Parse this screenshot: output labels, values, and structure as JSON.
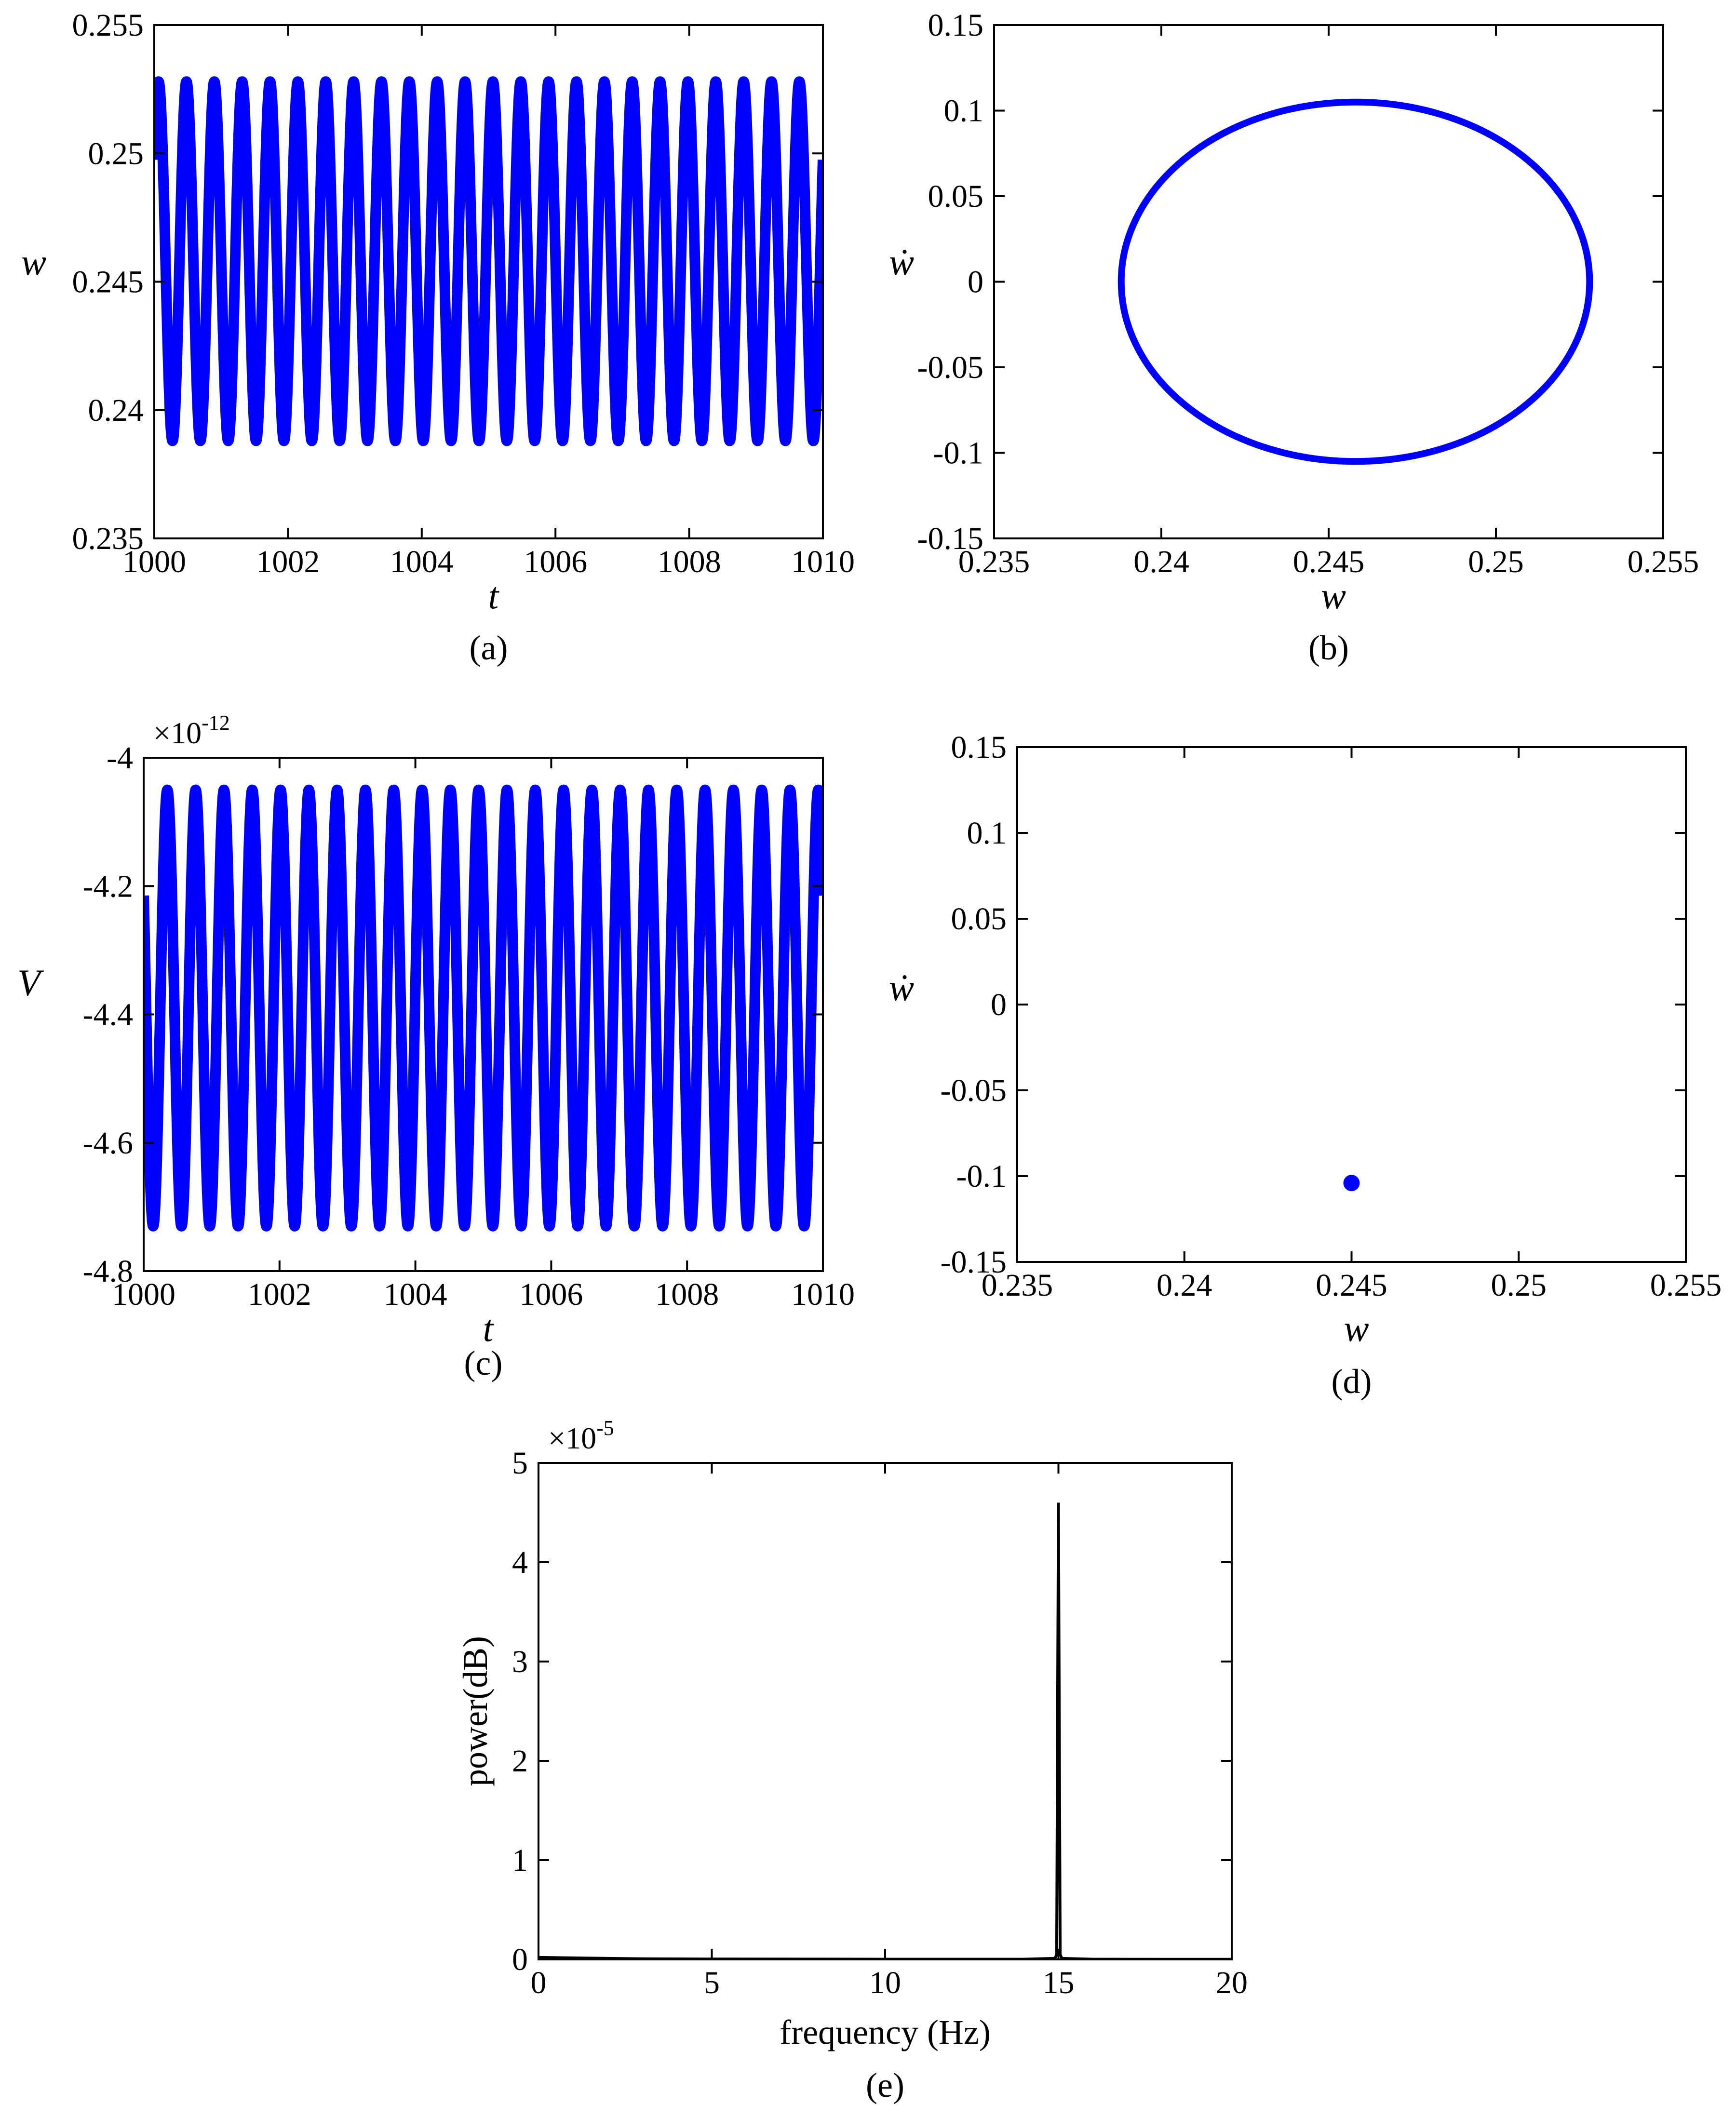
{
  "chart_data": [
    {
      "id": "a",
      "type": "line",
      "caption": "(a)",
      "xlabel": "t",
      "ylabel": "w",
      "xlim": [
        1000,
        1010
      ],
      "ylim": [
        0.235,
        0.255
      ],
      "xticks": [
        1000,
        1002,
        1004,
        1006,
        1008,
        1010
      ],
      "yticks": [
        0.235,
        0.24,
        0.245,
        0.25,
        0.255
      ],
      "xticklabels": [
        "1000",
        "1002",
        "1004",
        "1006",
        "1008",
        "1010"
      ],
      "yticklabels": [
        "0.235",
        "0.24",
        "0.245",
        "0.25",
        "0.255"
      ],
      "series": [
        {
          "color": "#0000ff",
          "signal": {
            "kind": "sine",
            "offset": 0.2458,
            "amplitude": 0.007,
            "frequency": 2.4,
            "phase": 0.6
          }
        }
      ]
    },
    {
      "id": "b",
      "type": "line",
      "caption": "(b)",
      "xlabel": "w",
      "ylabel": "ẇ",
      "xlim": [
        0.235,
        0.255
      ],
      "ylim": [
        -0.15,
        0.15
      ],
      "xticks": [
        0.235,
        0.24,
        0.245,
        0.25,
        0.255
      ],
      "yticks": [
        -0.15,
        -0.1,
        -0.05,
        0,
        0.05,
        0.1,
        0.15
      ],
      "xticklabels": [
        "0.235",
        "0.24",
        "0.245",
        "0.25",
        "0.255"
      ],
      "yticklabels": [
        "-0.15",
        "-0.1",
        "-0.05",
        "0",
        "0.05",
        "0.1",
        "0.15"
      ],
      "series": [
        {
          "color": "#0000ff",
          "ellipse": {
            "cx": 0.2458,
            "cy": 0,
            "rx": 0.007,
            "ry": 0.105
          }
        }
      ]
    },
    {
      "id": "c",
      "type": "line",
      "caption": "(c)",
      "xlabel": "t",
      "ylabel": "V",
      "exponent": "-12",
      "xlim": [
        1000,
        1010
      ],
      "ylim": [
        -4.8,
        -4.0
      ],
      "xticks": [
        1000,
        1002,
        1004,
        1006,
        1008,
        1010
      ],
      "yticks": [
        -4.8,
        -4.6,
        -4.4,
        -4.2,
        -4.0
      ],
      "xticklabels": [
        "1000",
        "1002",
        "1004",
        "1006",
        "1008",
        "1010"
      ],
      "yticklabels": [
        "-4.8",
        "-4.6",
        "-4.4",
        "-4.2",
        "-4"
      ],
      "series": [
        {
          "color": "#0000ff",
          "signal": {
            "kind": "sine",
            "offset": -4.39,
            "amplitude": 0.34,
            "frequency": 2.4,
            "phase": 2.6
          }
        }
      ]
    },
    {
      "id": "d",
      "type": "scatter",
      "caption": "(d)",
      "xlabel": "w",
      "ylabel": "ẇ",
      "xlim": [
        0.235,
        0.255
      ],
      "ylim": [
        -0.15,
        0.15
      ],
      "xticks": [
        0.235,
        0.24,
        0.245,
        0.25,
        0.255
      ],
      "yticks": [
        -0.15,
        -0.1,
        -0.05,
        0,
        0.05,
        0.1,
        0.15
      ],
      "xticklabels": [
        "0.235",
        "0.24",
        "0.245",
        "0.25",
        "0.255"
      ],
      "yticklabels": [
        "-0.15",
        "-0.1",
        "-0.05",
        "0",
        "0.05",
        "0.1",
        "0.15"
      ],
      "series": [
        {
          "color": "#0000ff",
          "points": [
            [
              0.245,
              -0.104
            ]
          ]
        }
      ]
    },
    {
      "id": "e",
      "type": "line",
      "caption": "(e)",
      "xlabel": "frequency (Hz)",
      "ylabel": "power(dB)",
      "exponent": "-5",
      "xlim": [
        0,
        20
      ],
      "ylim": [
        0,
        5
      ],
      "xticks": [
        0,
        5,
        10,
        15,
        20
      ],
      "yticks": [
        0,
        1,
        2,
        3,
        4,
        5
      ],
      "xticklabels": [
        "0",
        "5",
        "10",
        "15",
        "20"
      ],
      "yticklabels": [
        "0",
        "1",
        "2",
        "3",
        "4",
        "5"
      ],
      "series": [
        {
          "color": "#000000",
          "x": [
            0,
            1,
            2,
            3,
            5,
            8,
            10,
            12,
            14,
            14.9,
            14.95,
            15.0,
            15.05,
            15.1,
            16,
            18,
            20
          ],
          "y": [
            0.02,
            0.015,
            0.01,
            0.006,
            0.004,
            0.003,
            0.002,
            0.002,
            0.002,
            0.01,
            0.05,
            4.6,
            0.05,
            0.01,
            0.002,
            0.001,
            0.001
          ]
        }
      ]
    }
  ]
}
